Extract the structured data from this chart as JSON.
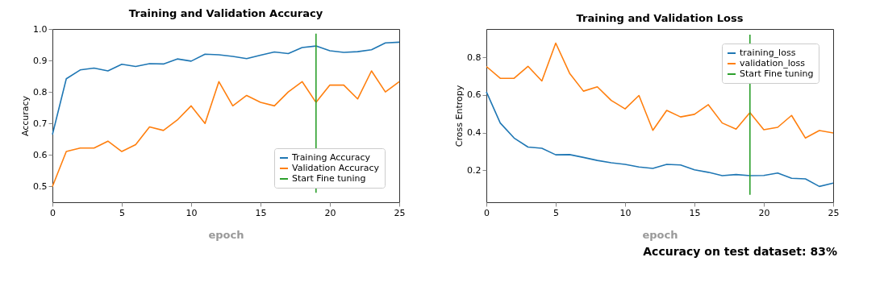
{
  "chart_data": [
    {
      "type": "line",
      "title": "Training and Validation Accuracy",
      "xlabel": "epoch",
      "ylabel": "Accuracy",
      "xlim": [
        0,
        25
      ],
      "xticks": [
        0,
        5,
        10,
        15,
        20,
        25
      ],
      "ylim": [
        0.45,
        1.0
      ],
      "yticks": [
        0.5,
        0.6,
        0.7,
        0.8,
        0.9,
        {
          "value": 1.0,
          "label": "1.0"
        }
      ],
      "grid": false,
      "legend": "bottom right",
      "series": [
        {
          "name": "Training Accuracy",
          "color": "#1f77b4",
          "x": [
            0,
            1,
            2,
            3,
            4,
            5,
            6,
            7,
            8,
            9,
            10,
            11,
            12,
            13,
            14,
            15,
            16,
            17,
            18,
            19,
            20,
            21,
            22,
            23,
            24,
            25
          ],
          "values": [
            0.665,
            0.842,
            0.87,
            0.876,
            0.867,
            0.888,
            0.881,
            0.89,
            0.889,
            0.905,
            0.898,
            0.92,
            0.918,
            0.913,
            0.906,
            0.917,
            0.927,
            0.922,
            0.941,
            0.946,
            0.931,
            0.926,
            0.928,
            0.934,
            0.956,
            0.958
          ]
        },
        {
          "name": "Validation Accuracy",
          "color": "#ff7f0e",
          "x": [
            0,
            1,
            2,
            3,
            4,
            5,
            6,
            7,
            8,
            9,
            10,
            11,
            12,
            13,
            14,
            15,
            16,
            17,
            18,
            19,
            20,
            21,
            22,
            23,
            24,
            25
          ],
          "values": [
            0.5,
            0.611,
            0.622,
            0.622,
            0.644,
            0.611,
            0.633,
            0.689,
            0.678,
            0.711,
            0.756,
            0.7,
            0.833,
            0.756,
            0.789,
            0.767,
            0.756,
            0.8,
            0.833,
            0.767,
            0.822,
            0.822,
            0.778,
            0.867,
            0.8,
            0.833
          ]
        },
        {
          "name": "Start Fine tuning",
          "color": "#2ca02c",
          "x": [
            19,
            19
          ],
          "values": [
            0.48,
            0.985
          ]
        }
      ]
    },
    {
      "type": "line",
      "title": "Training and Validation Loss",
      "xlabel": "epoch",
      "ylabel": "Cross Entropy",
      "xlim": [
        0,
        25
      ],
      "xticks": [
        0,
        5,
        10,
        15,
        20,
        25
      ],
      "ylim": [
        0.03,
        0.95
      ],
      "yticks": [
        0.2,
        0.4,
        0.6,
        0.8
      ],
      "grid": false,
      "legend": "top right",
      "annotations": [
        "Accuracy on test dataset: 83%"
      ],
      "series": [
        {
          "name": "training_loss",
          "color": "#1f77b4",
          "x": [
            0,
            1,
            2,
            3,
            4,
            5,
            6,
            7,
            8,
            9,
            10,
            11,
            12,
            13,
            14,
            15,
            16,
            17,
            18,
            19,
            20,
            21,
            22,
            23,
            24,
            25
          ],
          "values": [
            0.617,
            0.451,
            0.371,
            0.323,
            0.317,
            0.282,
            0.283,
            0.268,
            0.252,
            0.24,
            0.231,
            0.217,
            0.21,
            0.231,
            0.228,
            0.202,
            0.189,
            0.171,
            0.177,
            0.171,
            0.172,
            0.185,
            0.157,
            0.154,
            0.114,
            0.132
          ]
        },
        {
          "name": "validation_loss",
          "color": "#ff7f0e",
          "x": [
            0,
            1,
            2,
            3,
            4,
            5,
            6,
            7,
            8,
            9,
            10,
            11,
            12,
            13,
            14,
            15,
            16,
            17,
            18,
            19,
            20,
            21,
            22,
            23,
            24,
            25
          ],
          "values": [
            0.751,
            0.688,
            0.688,
            0.752,
            0.674,
            0.875,
            0.715,
            0.62,
            0.643,
            0.571,
            0.526,
            0.597,
            0.412,
            0.518,
            0.483,
            0.497,
            0.548,
            0.451,
            0.418,
            0.506,
            0.415,
            0.428,
            0.491,
            0.371,
            0.411,
            0.398
          ]
        },
        {
          "name": "Start Fine tuning",
          "color": "#2ca02c",
          "x": [
            19,
            19
          ],
          "values": [
            0.07,
            0.92
          ]
        }
      ]
    }
  ]
}
